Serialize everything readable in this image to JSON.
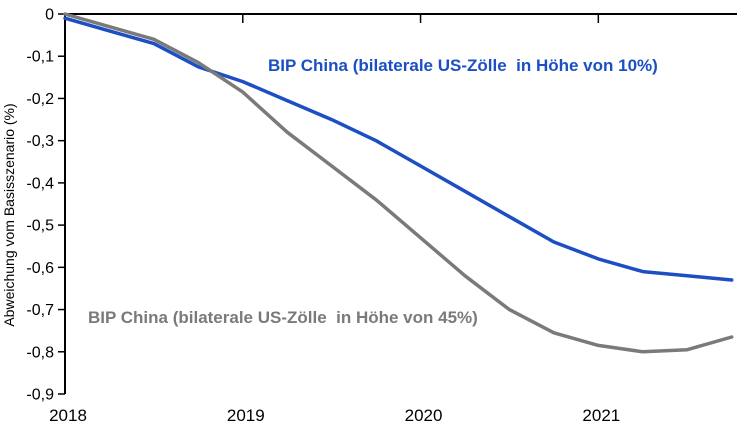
{
  "figure": {
    "background_color": "#ffffff",
    "axis_color": "#000000"
  },
  "chart_data": {
    "type": "line",
    "title": "",
    "xlabel": "",
    "ylabel": "Abweichung vom Basisszenario (%)",
    "x_unit": "year (quarterly points)",
    "x": [
      2018,
      2018.25,
      2018.5,
      2018.75,
      2019,
      2019.25,
      2019.5,
      2019.75,
      2020,
      2020.25,
      2020.5,
      2020.75,
      2021,
      2021.25,
      2021.5,
      2021.75
    ],
    "series": [
      {
        "name": "BIP China (bilaterale US-Zölle  in Höhe von 10%)",
        "color": "#1c4fc3",
        "values": [
          -0.01,
          -0.04,
          -0.07,
          -0.125,
          -0.16,
          -0.205,
          -0.25,
          -0.3,
          -0.36,
          -0.42,
          -0.48,
          -0.54,
          -0.58,
          -0.61,
          -0.62,
          -0.63
        ]
      },
      {
        "name": "BIP China (bilaterale US-Zölle  in Höhe von 45%)",
        "color": "#7a7a7a",
        "values": [
          0.0,
          -0.03,
          -0.06,
          -0.115,
          -0.185,
          -0.28,
          -0.36,
          -0.44,
          -0.53,
          -0.62,
          -0.7,
          -0.755,
          -0.785,
          -0.8,
          -0.795,
          -0.765
        ]
      }
    ],
    "xlim": [
      2018,
      2021.78
    ],
    "ylim": [
      -0.9,
      0
    ],
    "grid": false,
    "legend_position": "inline-labels-on-plot",
    "y_ticks": [
      {
        "value": 0,
        "label": "0"
      },
      {
        "value": -0.1,
        "label": "-0,1"
      },
      {
        "value": -0.2,
        "label": "-0,2"
      },
      {
        "value": -0.3,
        "label": "-0,3"
      },
      {
        "value": -0.4,
        "label": "-0,4"
      },
      {
        "value": -0.5,
        "label": "-0,5"
      },
      {
        "value": -0.6,
        "label": "-0,6"
      },
      {
        "value": -0.7,
        "label": "-0,7"
      },
      {
        "value": -0.8,
        "label": "-0,8"
      },
      {
        "value": -0.9,
        "label": "-0,9"
      }
    ],
    "x_ticks": [
      {
        "value": 2018,
        "label": "2018",
        "top_tick": false
      },
      {
        "value": 2019,
        "label": "2019",
        "top_tick": true
      },
      {
        "value": 2020,
        "label": "2020",
        "top_tick": true
      },
      {
        "value": 2021,
        "label": "2021",
        "top_tick": true
      }
    ]
  }
}
